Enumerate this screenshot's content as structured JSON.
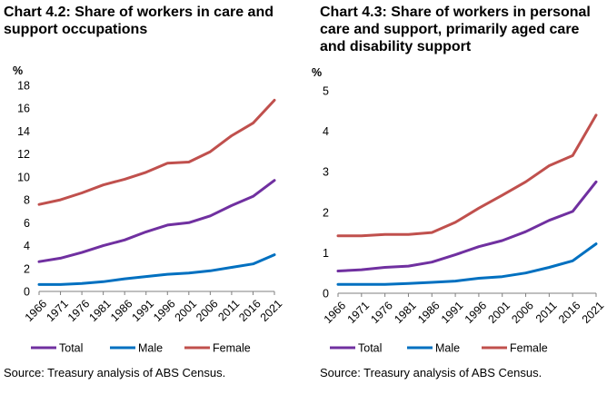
{
  "chart_data": [
    {
      "type": "line",
      "title": "Chart 4.2: Share of workers in care and support occupations",
      "ylabel": "%",
      "ylim": [
        0,
        18
      ],
      "yticks": [
        0,
        2,
        4,
        6,
        8,
        10,
        12,
        14,
        16,
        18
      ],
      "categories": [
        "1966",
        "1971",
        "1976",
        "1981",
        "1986",
        "1991",
        "1996",
        "2001",
        "2006",
        "2011",
        "2016",
        "2021"
      ],
      "series": [
        {
          "name": "Total",
          "color": "#7030a0",
          "values": [
            2.6,
            2.9,
            3.4,
            4.0,
            4.5,
            5.2,
            5.8,
            6.0,
            6.6,
            7.5,
            8.3,
            9.7
          ]
        },
        {
          "name": "Male",
          "color": "#0070c0",
          "values": [
            0.6,
            0.6,
            0.7,
            0.85,
            1.1,
            1.3,
            1.5,
            1.6,
            1.8,
            2.1,
            2.4,
            3.2
          ]
        },
        {
          "name": "Female",
          "color": "#c0504d",
          "values": [
            7.6,
            8.0,
            8.6,
            9.3,
            9.8,
            10.4,
            11.2,
            11.3,
            12.2,
            13.6,
            14.7,
            16.7
          ]
        }
      ],
      "source": "Source: Treasury analysis of ABS Census.",
      "grid": false,
      "legend": "bottom"
    },
    {
      "type": "line",
      "title": "Chart 4.3: Share of workers in personal care and support, primarily aged care and disability support",
      "ylabel": "%",
      "ylim": [
        0,
        5
      ],
      "yticks": [
        0,
        1,
        2,
        3,
        4,
        5
      ],
      "categories": [
        "1966",
        "1971",
        "1976",
        "1981",
        "1986",
        "1991",
        "1996",
        "2001",
        "2006",
        "2011",
        "2016",
        "2021"
      ],
      "series": [
        {
          "name": "Total",
          "color": "#7030a0",
          "values": [
            0.55,
            0.58,
            0.64,
            0.67,
            0.77,
            0.95,
            1.15,
            1.3,
            1.52,
            1.8,
            2.02,
            2.75
          ]
        },
        {
          "name": "Male",
          "color": "#0070c0",
          "values": [
            0.22,
            0.22,
            0.22,
            0.24,
            0.27,
            0.3,
            0.37,
            0.41,
            0.5,
            0.64,
            0.8,
            1.22
          ]
        },
        {
          "name": "Female",
          "color": "#c0504d",
          "values": [
            1.42,
            1.42,
            1.45,
            1.45,
            1.5,
            1.75,
            2.1,
            2.42,
            2.75,
            3.15,
            3.4,
            4.4
          ]
        }
      ],
      "source": "Source: Treasury analysis of ABS Census.",
      "grid": false,
      "legend": "bottom"
    }
  ]
}
